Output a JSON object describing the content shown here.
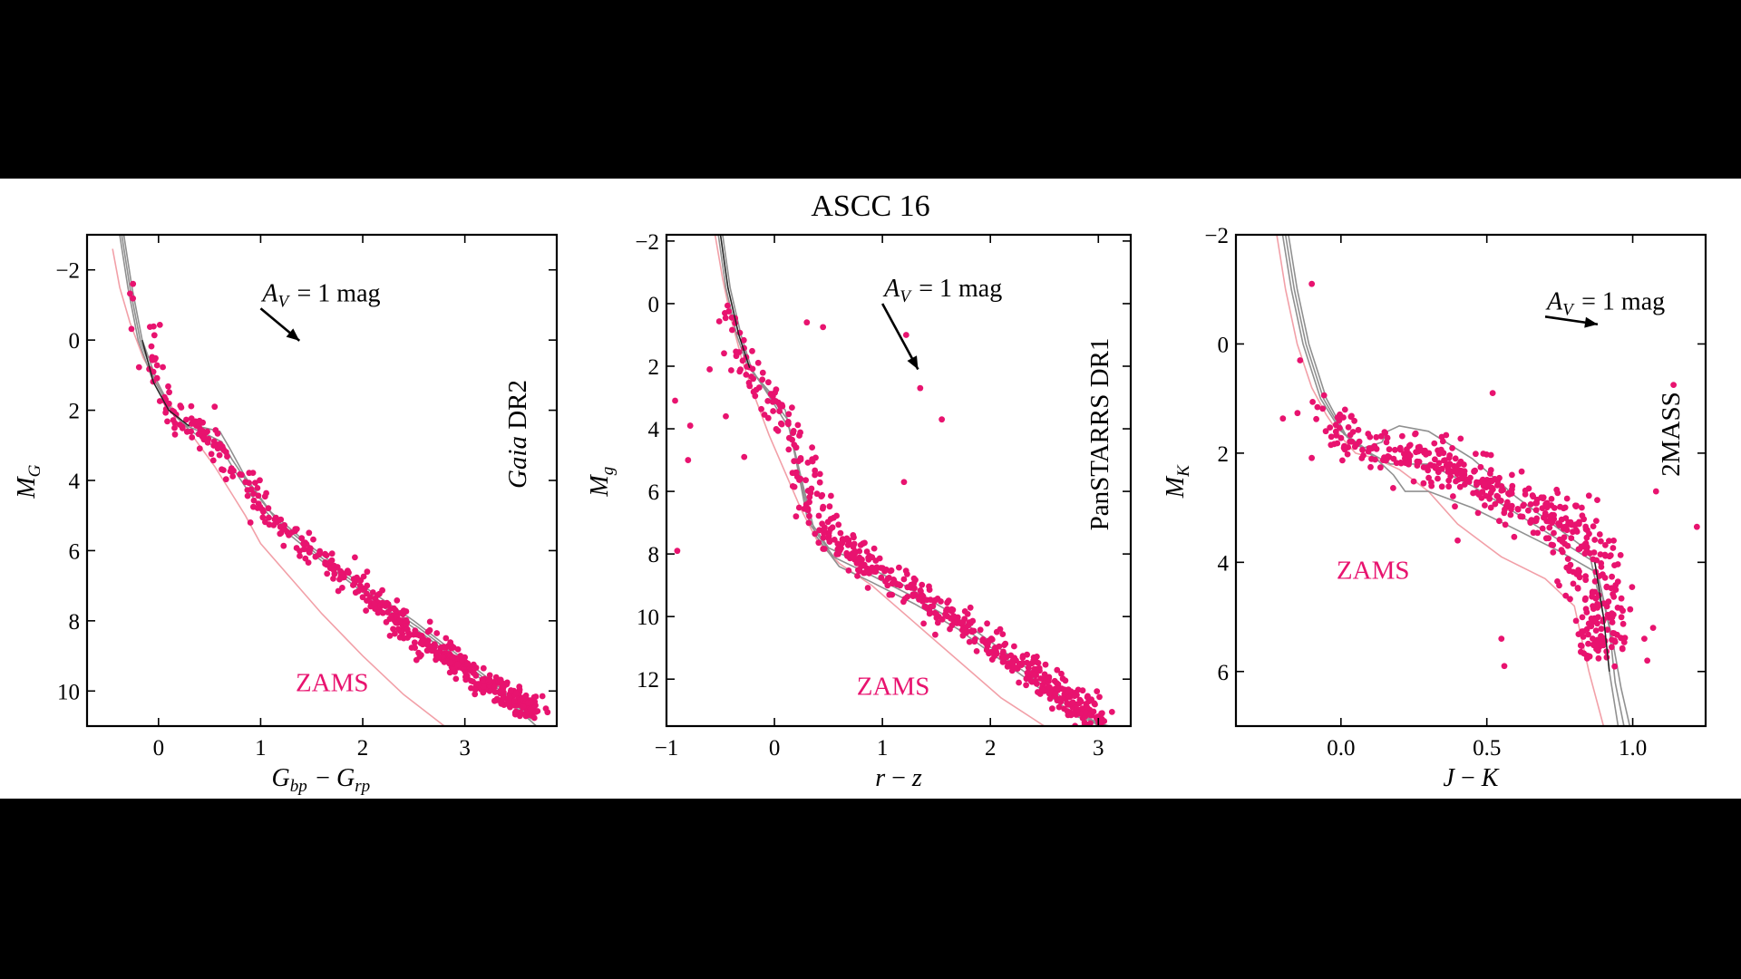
{
  "figure_title": "ASCC 16",
  "colors": {
    "stars": "#e8136f",
    "zams": "#e8136f",
    "zams_line": "#f2a0a8",
    "isochrone": "#909090",
    "isochrone_best": "#222222",
    "background": "#000000",
    "figure_background": "#ffffff"
  },
  "chart_data": [
    {
      "type": "scatter",
      "survey_label": "DR2",
      "survey_label_italic": "Gaia",
      "xlabel": "G_bp − G_rp",
      "ylabel": "M_G",
      "reddening_label": "A_V = 1 mag",
      "reddening_vector": {
        "from": [
          1.0,
          -0.9
        ],
        "to": [
          1.38,
          0.02
        ]
      },
      "zams_label": "ZAMS",
      "zams_label_pos": [
        1.7,
        10.0
      ],
      "xlim": [
        -0.7,
        3.9
      ],
      "ylim": [
        11.0,
        -3.0
      ],
      "xticks": [
        0,
        1,
        2,
        3
      ],
      "xtick_labels": [
        "0",
        "1",
        "2",
        "3"
      ],
      "yticks": [
        -2,
        0,
        2,
        4,
        6,
        8,
        10
      ],
      "ytick_labels": [
        "−2",
        "0",
        "2",
        "4",
        "6",
        "8",
        "10"
      ],
      "zams": {
        "x": [
          -0.45,
          -0.38,
          -0.28,
          -0.15,
          0.0,
          0.15,
          0.35,
          0.55,
          0.7,
          0.85,
          1.0,
          1.3,
          1.6,
          2.0,
          2.4,
          2.8
        ],
        "y": [
          -2.6,
          -1.5,
          -0.5,
          0.5,
          1.3,
          2.0,
          2.8,
          3.6,
          4.3,
          5.0,
          5.8,
          6.8,
          7.8,
          9.0,
          10.1,
          11.0
        ]
      },
      "isochrones": [
        {
          "x": [
            -0.38,
            -0.3,
            -0.2,
            -0.05,
            0.1,
            0.25,
            0.45,
            0.6,
            0.7,
            0.85,
            1.1,
            1.5,
            2.0,
            2.5,
            2.9,
            3.3,
            3.6
          ],
          "y": [
            -3.0,
            -1.5,
            0.0,
            1.2,
            2.0,
            2.4,
            2.5,
            2.6,
            3.1,
            3.9,
            4.9,
            5.9,
            7.0,
            8.0,
            8.9,
            9.8,
            10.6
          ]
        },
        {
          "x": [
            -0.36,
            -0.28,
            -0.18,
            -0.03,
            0.12,
            0.28,
            0.48,
            0.62,
            0.72,
            0.88,
            1.15,
            1.55,
            2.05,
            2.55,
            2.95,
            3.35,
            3.65
          ],
          "y": [
            -3.0,
            -1.5,
            0.0,
            1.2,
            2.0,
            2.45,
            2.7,
            2.9,
            3.4,
            4.1,
            5.1,
            6.1,
            7.2,
            8.2,
            9.1,
            10.0,
            10.8
          ]
        },
        {
          "x": [
            -0.34,
            -0.26,
            -0.16,
            -0.01,
            0.14,
            0.3,
            0.5,
            0.64,
            0.74,
            0.9,
            1.18,
            1.6,
            2.1,
            2.6,
            3.0,
            3.4,
            3.7
          ],
          "y": [
            -3.0,
            -1.5,
            0.0,
            1.2,
            2.05,
            2.55,
            2.95,
            3.2,
            3.7,
            4.4,
            5.3,
            6.3,
            7.4,
            8.4,
            9.3,
            10.2,
            11.0
          ]
        }
      ],
      "best_isochrone": {
        "x": [
          -0.16,
          -0.05,
          0.1,
          0.3
        ],
        "y": [
          0.0,
          1.2,
          2.0,
          2.45
        ]
      },
      "star_ridge": {
        "x": [
          -0.22,
          -0.1,
          0.0,
          0.2,
          0.4,
          0.6,
          1.0,
          1.4,
          1.8,
          2.2,
          2.5,
          2.8,
          3.1,
          3.4,
          3.7
        ],
        "y": [
          -1.6,
          0.2,
          1.3,
          2.3,
          2.6,
          3.2,
          4.7,
          5.8,
          6.7,
          7.6,
          8.3,
          9.0,
          9.6,
          10.1,
          10.6
        ],
        "scatter_x": 0.07,
        "scatter_y": 0.28,
        "n": 560
      },
      "outliers": [
        {
          "x": -0.25,
          "y": -1.6
        },
        {
          "x": 0.55,
          "y": 1.9
        },
        {
          "x": 0.9,
          "y": 5.2
        }
      ]
    },
    {
      "type": "scatter",
      "survey_label": "PanSTARRS DR1",
      "survey_label_italic": "",
      "xlabel": "r − z",
      "ylabel": "M_g",
      "reddening_label": "A_V = 1 mag",
      "reddening_vector": {
        "from": [
          1.0,
          0.0
        ],
        "to": [
          1.33,
          2.1
        ]
      },
      "zams_label": "ZAMS",
      "zams_label_pos": [
        1.1,
        12.5
      ],
      "xlim": [
        -1.0,
        3.3
      ],
      "ylim": [
        13.5,
        -2.2
      ],
      "xticks": [
        -1,
        0,
        1,
        2,
        3
      ],
      "xtick_labels": [
        "−1",
        "0",
        "1",
        "2",
        "3"
      ],
      "yticks": [
        -2,
        0,
        2,
        4,
        6,
        8,
        10,
        12
      ],
      "ytick_labels": [
        "−2",
        "0",
        "2",
        "4",
        "6",
        "8",
        "10",
        "12"
      ],
      "zams": {
        "x": [
          -0.55,
          -0.48,
          -0.4,
          -0.3,
          -0.18,
          -0.05,
          0.1,
          0.25,
          0.4,
          0.6,
          0.9,
          1.3,
          1.7,
          2.1,
          2.5
        ],
        "y": [
          -2.2,
          -0.8,
          0.5,
          1.8,
          3.0,
          4.2,
          5.4,
          6.6,
          7.6,
          8.3,
          9.0,
          10.2,
          11.4,
          12.6,
          13.5
        ]
      },
      "isochrones": [
        {
          "x": [
            -0.52,
            -0.45,
            -0.35,
            -0.25,
            -0.1,
            0.1,
            0.2,
            0.3,
            0.5,
            0.8,
            1.2,
            1.6,
            2.0,
            2.4,
            2.7,
            3.0
          ],
          "y": [
            -2.2,
            -0.5,
            1.0,
            2.0,
            2.6,
            3.4,
            5.0,
            6.8,
            7.8,
            8.3,
            9.0,
            9.8,
            10.8,
            11.8,
            12.7,
            13.5
          ]
        },
        {
          "x": [
            -0.5,
            -0.43,
            -0.33,
            -0.23,
            -0.08,
            0.12,
            0.22,
            0.34,
            0.55,
            0.85,
            1.25,
            1.65,
            2.05,
            2.45,
            2.75,
            3.05
          ],
          "y": [
            -2.2,
            -0.5,
            1.0,
            2.05,
            2.75,
            3.7,
            5.3,
            7.1,
            8.1,
            8.6,
            9.3,
            10.1,
            11.1,
            12.1,
            12.95,
            13.5
          ]
        },
        {
          "x": [
            -0.48,
            -0.41,
            -0.31,
            -0.21,
            -0.06,
            0.14,
            0.25,
            0.38,
            0.6,
            0.9,
            1.3,
            1.7,
            2.1,
            2.5,
            2.8,
            3.1
          ],
          "y": [
            -2.2,
            -0.5,
            1.0,
            2.1,
            2.9,
            4.0,
            5.6,
            7.4,
            8.4,
            8.9,
            9.6,
            10.4,
            11.4,
            12.4,
            13.2,
            13.5
          ]
        }
      ],
      "best_isochrone": {
        "x": [
          -0.5,
          -0.43,
          -0.33,
          -0.23
        ],
        "y": [
          -2.2,
          -0.5,
          1.0,
          2.05
        ]
      },
      "star_ridge": {
        "x": [
          -0.48,
          -0.38,
          -0.3,
          -0.1,
          0.1,
          0.3,
          0.5,
          0.8,
          1.2,
          1.6,
          2.0,
          2.4,
          2.7,
          3.0
        ],
        "y": [
          -0.5,
          0.8,
          1.6,
          2.8,
          3.8,
          5.6,
          7.3,
          8.2,
          9.0,
          9.9,
          10.9,
          11.8,
          12.6,
          13.3
        ],
        "scatter_x": 0.08,
        "scatter_y": 0.35,
        "n": 560
      },
      "outliers": [
        {
          "x": -0.9,
          "y": 7.9
        },
        {
          "x": -0.78,
          "y": 3.9
        },
        {
          "x": -0.6,
          "y": 2.1
        },
        {
          "x": -0.45,
          "y": 3.6
        },
        {
          "x": -0.8,
          "y": 5.0
        },
        {
          "x": -0.28,
          "y": 4.9
        },
        {
          "x": 0.3,
          "y": 0.6
        },
        {
          "x": 0.45,
          "y": 0.75
        },
        {
          "x": 1.22,
          "y": 1.0
        },
        {
          "x": 1.35,
          "y": 2.7
        },
        {
          "x": 1.55,
          "y": 3.7
        },
        {
          "x": 1.2,
          "y": 5.7
        },
        {
          "x": 0.2,
          "y": 6.8
        },
        {
          "x": -0.92,
          "y": 3.1
        }
      ]
    },
    {
      "type": "scatter",
      "survey_label": "2MASS",
      "survey_label_italic": "",
      "xlabel": "J − K",
      "ylabel": "M_K",
      "reddening_label": "A_V = 1 mag",
      "reddening_vector": {
        "from": [
          0.7,
          -0.5
        ],
        "to": [
          0.88,
          -0.36
        ]
      },
      "zams_label": "ZAMS",
      "zams_label_pos": [
        0.11,
        4.3
      ],
      "xlim": [
        -0.36,
        1.25
      ],
      "ylim": [
        7.0,
        -2.0
      ],
      "xticks": [
        0.0,
        0.5,
        1.0
      ],
      "xtick_labels": [
        "0.0",
        "0.5",
        "1.0"
      ],
      "yticks": [
        -2,
        0,
        2,
        4,
        6
      ],
      "ytick_labels": [
        "−2",
        "0",
        "2",
        "4",
        "6"
      ],
      "zams": {
        "x": [
          -0.22,
          -0.19,
          -0.15,
          -0.1,
          -0.05,
          0.0,
          0.05,
          0.12,
          0.2,
          0.3,
          0.4,
          0.55,
          0.7,
          0.8,
          0.85,
          0.9
        ],
        "y": [
          -2.0,
          -1.0,
          0.0,
          0.8,
          1.3,
          1.7,
          2.0,
          2.1,
          2.3,
          2.7,
          3.3,
          3.9,
          4.3,
          4.8,
          6.0,
          7.0
        ]
      },
      "isochrones": [
        {
          "x": [
            -0.2,
            -0.17,
            -0.13,
            -0.07,
            0.0,
            0.08,
            0.14,
            0.16,
            0.2,
            0.3,
            0.45,
            0.6,
            0.75,
            0.85,
            0.9,
            0.92,
            0.95
          ],
          "y": [
            -2.0,
            -1.0,
            0.0,
            1.0,
            1.6,
            1.9,
            1.8,
            1.6,
            1.5,
            1.6,
            2.1,
            2.8,
            3.4,
            3.8,
            5.0,
            6.0,
            7.0
          ]
        },
        {
          "x": [
            -0.19,
            -0.16,
            -0.12,
            -0.06,
            0.01,
            0.1,
            0.17,
            0.22,
            0.3,
            0.45,
            0.6,
            0.75,
            0.87,
            0.92,
            0.94,
            0.97
          ],
          "y": [
            -2.0,
            -1.0,
            0.0,
            1.0,
            1.65,
            2.0,
            2.2,
            2.2,
            2.2,
            2.6,
            3.1,
            3.6,
            4.0,
            5.2,
            6.2,
            7.0
          ]
        },
        {
          "x": [
            -0.18,
            -0.15,
            -0.11,
            -0.05,
            0.02,
            0.12,
            0.18,
            0.22,
            0.3,
            0.45,
            0.6,
            0.75,
            0.88,
            0.93,
            0.96,
            0.99
          ],
          "y": [
            -2.0,
            -1.0,
            0.0,
            1.0,
            1.7,
            2.1,
            2.4,
            2.7,
            2.7,
            3.0,
            3.4,
            3.8,
            4.2,
            5.4,
            6.3,
            7.0
          ]
        }
      ],
      "best_isochrone": {
        "x": [
          0.87,
          0.9,
          0.92
        ],
        "y": [
          4.0,
          5.0,
          6.0
        ]
      },
      "star_ridge": {
        "x": [
          -0.12,
          -0.05,
          0.0,
          0.1,
          0.2,
          0.35,
          0.5,
          0.65,
          0.78,
          0.85,
          0.88,
          0.9
        ],
        "y": [
          0.6,
          1.2,
          1.7,
          2.0,
          2.0,
          2.2,
          2.6,
          3.0,
          3.2,
          3.8,
          4.8,
          5.8
        ],
        "scatter_x": 0.05,
        "scatter_y": 0.35,
        "n": 520
      },
      "outliers": [
        {
          "x": -0.1,
          "y": -1.1
        },
        {
          "x": -0.14,
          "y": 0.3
        },
        {
          "x": 0.52,
          "y": 0.9
        },
        {
          "x": 1.14,
          "y": 0.75
        },
        {
          "x": 1.22,
          "y": 3.35
        },
        {
          "x": 1.08,
          "y": 2.7
        },
        {
          "x": 0.56,
          "y": 5.9
        },
        {
          "x": 0.55,
          "y": 5.4
        },
        {
          "x": 1.04,
          "y": 5.4
        },
        {
          "x": 1.07,
          "y": 5.2
        },
        {
          "x": 0.4,
          "y": 3.6
        },
        {
          "x": 1.05,
          "y": 5.8
        }
      ]
    }
  ]
}
